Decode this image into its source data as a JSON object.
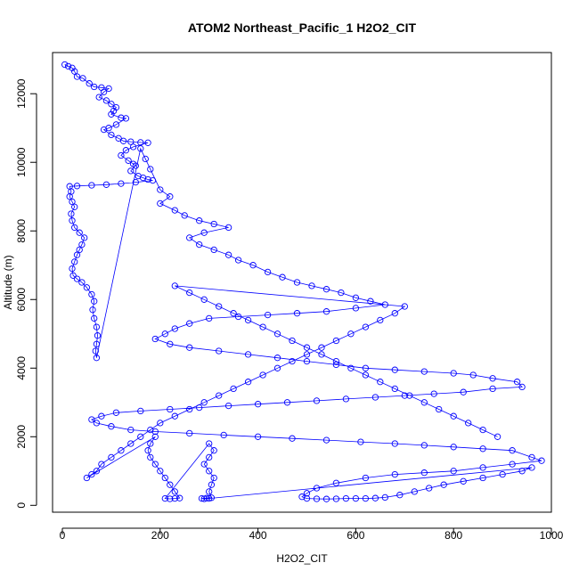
{
  "chart_data": {
    "type": "scatter",
    "title": "ATOM2 Northeast_Pacific_1 H2O2_CIT",
    "xlabel": "H2O2_CIT",
    "ylabel": "Altitude (m)",
    "xlim": [
      -20,
      1000
    ],
    "ylim": [
      -200,
      13200
    ],
    "x_ticks": [
      0,
      200,
      400,
      600,
      800,
      1000
    ],
    "y_ticks": [
      0,
      2000,
      4000,
      6000,
      8000,
      10000,
      12000
    ],
    "grid": false,
    "legend": "none",
    "marker": "open-circle",
    "connected": true,
    "colors": {
      "series": "#0000ff"
    },
    "series": [
      {
        "name": "",
        "points": [
          [
            5,
            12850
          ],
          [
            12,
            12800
          ],
          [
            20,
            12750
          ],
          [
            25,
            12650
          ],
          [
            30,
            12500
          ],
          [
            42,
            12450
          ],
          [
            55,
            12300
          ],
          [
            65,
            12200
          ],
          [
            80,
            12180
          ],
          [
            95,
            12150
          ],
          [
            85,
            12050
          ],
          [
            75,
            11900
          ],
          [
            90,
            11800
          ],
          [
            100,
            11700
          ],
          [
            110,
            11600
          ],
          [
            105,
            11500
          ],
          [
            100,
            11400
          ],
          [
            120,
            11300
          ],
          [
            130,
            11280
          ],
          [
            110,
            11100
          ],
          [
            95,
            11000
          ],
          [
            85,
            10950
          ],
          [
            100,
            10800
          ],
          [
            115,
            10700
          ],
          [
            125,
            10620
          ],
          [
            140,
            10600
          ],
          [
            160,
            10580
          ],
          [
            175,
            10570
          ],
          [
            145,
            10450
          ],
          [
            130,
            10350
          ],
          [
            120,
            10200
          ],
          [
            135,
            10050
          ],
          [
            145,
            9950
          ],
          [
            150,
            9900
          ],
          [
            140,
            9750
          ],
          [
            155,
            9600
          ],
          [
            165,
            9550
          ],
          [
            175,
            9500
          ],
          [
            185,
            9470
          ],
          [
            150,
            9420
          ],
          [
            120,
            9380
          ],
          [
            90,
            9350
          ],
          [
            60,
            9330
          ],
          [
            30,
            9310
          ],
          [
            15,
            9300
          ],
          [
            18,
            9150
          ],
          [
            15,
            9000
          ],
          [
            20,
            8850
          ],
          [
            25,
            8700
          ],
          [
            18,
            8500
          ],
          [
            20,
            8300
          ],
          [
            25,
            8100
          ],
          [
            35,
            7950
          ],
          [
            45,
            7800
          ],
          [
            40,
            7600
          ],
          [
            35,
            7450
          ],
          [
            30,
            7300
          ],
          [
            25,
            7100
          ],
          [
            20,
            6900
          ],
          [
            22,
            6700
          ],
          [
            30,
            6600
          ],
          [
            40,
            6500
          ],
          [
            50,
            6350
          ],
          [
            60,
            6150
          ],
          [
            65,
            5950
          ],
          [
            62,
            5700
          ],
          [
            65,
            5450
          ],
          [
            70,
            5200
          ],
          [
            72,
            4950
          ],
          [
            70,
            4700
          ],
          [
            68,
            4500
          ],
          [
            70,
            4300
          ],
          [
            160,
            10400
          ],
          [
            170,
            10100
          ],
          [
            180,
            9800
          ],
          [
            200,
            9200
          ],
          [
            220,
            9000
          ],
          [
            200,
            8800
          ],
          [
            230,
            8600
          ],
          [
            250,
            8450
          ],
          [
            280,
            8300
          ],
          [
            310,
            8200
          ],
          [
            340,
            8100
          ],
          [
            290,
            7950
          ],
          [
            260,
            7800
          ],
          [
            280,
            7600
          ],
          [
            310,
            7450
          ],
          [
            340,
            7300
          ],
          [
            360,
            7150
          ],
          [
            390,
            7000
          ],
          [
            420,
            6800
          ],
          [
            450,
            6650
          ],
          [
            480,
            6500
          ],
          [
            510,
            6400
          ],
          [
            540,
            6300
          ],
          [
            570,
            6200
          ],
          [
            600,
            6050
          ],
          [
            630,
            5950
          ],
          [
            660,
            5850
          ],
          [
            600,
            5750
          ],
          [
            540,
            5650
          ],
          [
            480,
            5600
          ],
          [
            420,
            5550
          ],
          [
            360,
            5500
          ],
          [
            300,
            5450
          ],
          [
            260,
            5300
          ],
          [
            230,
            5150
          ],
          [
            210,
            5000
          ],
          [
            190,
            4850
          ],
          [
            220,
            4700
          ],
          [
            260,
            4600
          ],
          [
            320,
            4500
          ],
          [
            380,
            4400
          ],
          [
            440,
            4300
          ],
          [
            500,
            4200
          ],
          [
            560,
            4100
          ],
          [
            620,
            4000
          ],
          [
            680,
            3950
          ],
          [
            740,
            3900
          ],
          [
            800,
            3850
          ],
          [
            840,
            3800
          ],
          [
            880,
            3700
          ],
          [
            930,
            3600
          ],
          [
            940,
            3450
          ],
          [
            880,
            3400
          ],
          [
            820,
            3300
          ],
          [
            760,
            3250
          ],
          [
            700,
            3200
          ],
          [
            640,
            3150
          ],
          [
            580,
            3100
          ],
          [
            520,
            3050
          ],
          [
            460,
            3000
          ],
          [
            400,
            2950
          ],
          [
            340,
            2900
          ],
          [
            280,
            2850
          ],
          [
            220,
            2800
          ],
          [
            160,
            2750
          ],
          [
            110,
            2700
          ],
          [
            80,
            2600
          ],
          [
            60,
            2500
          ],
          [
            70,
            2400
          ],
          [
            100,
            2300
          ],
          [
            140,
            2200
          ],
          [
            190,
            2150
          ],
          [
            260,
            2100
          ],
          [
            330,
            2050
          ],
          [
            400,
            2000
          ],
          [
            470,
            1950
          ],
          [
            540,
            1900
          ],
          [
            610,
            1850
          ],
          [
            680,
            1800
          ],
          [
            740,
            1750
          ],
          [
            800,
            1700
          ],
          [
            860,
            1650
          ],
          [
            920,
            1600
          ],
          [
            960,
            1400
          ],
          [
            980,
            1300
          ],
          [
            920,
            1200
          ],
          [
            860,
            1100
          ],
          [
            800,
            1000
          ],
          [
            740,
            950
          ],
          [
            680,
            900
          ],
          [
            620,
            800
          ],
          [
            560,
            650
          ],
          [
            520,
            500
          ],
          [
            500,
            350
          ],
          [
            490,
            250
          ],
          [
            500,
            200
          ],
          [
            520,
            190
          ],
          [
            540,
            185
          ],
          [
            560,
            190
          ],
          [
            580,
            200
          ],
          [
            600,
            200
          ],
          [
            620,
            200
          ],
          [
            640,
            210
          ],
          [
            660,
            230
          ],
          [
            690,
            300
          ],
          [
            720,
            400
          ],
          [
            750,
            500
          ],
          [
            780,
            600
          ],
          [
            820,
            700
          ],
          [
            860,
            800
          ],
          [
            900,
            900
          ],
          [
            940,
            1000
          ],
          [
            960,
            1100
          ],
          [
            300,
            200
          ],
          [
            290,
            190
          ],
          [
            285,
            200
          ],
          [
            295,
            210
          ],
          [
            305,
            220
          ],
          [
            300,
            400
          ],
          [
            305,
            600
          ],
          [
            310,
            800
          ],
          [
            300,
            1000
          ],
          [
            290,
            1200
          ],
          [
            300,
            1400
          ],
          [
            310,
            1600
          ],
          [
            300,
            1800
          ],
          [
            210,
            200
          ],
          [
            220,
            190
          ],
          [
            230,
            200
          ],
          [
            240,
            210
          ],
          [
            230,
            400
          ],
          [
            220,
            600
          ],
          [
            210,
            800
          ],
          [
            200,
            1000
          ],
          [
            190,
            1200
          ],
          [
            180,
            1400
          ],
          [
            175,
            1600
          ],
          [
            180,
            1800
          ],
          [
            190,
            2000
          ],
          [
            50,
            800
          ],
          [
            60,
            900
          ],
          [
            70,
            1000
          ],
          [
            80,
            1200
          ],
          [
            100,
            1400
          ],
          [
            120,
            1600
          ],
          [
            140,
            1800
          ],
          [
            160,
            2000
          ],
          [
            180,
            2200
          ],
          [
            200,
            2400
          ],
          [
            230,
            2600
          ],
          [
            260,
            2800
          ],
          [
            290,
            3000
          ],
          [
            320,
            3200
          ],
          [
            350,
            3400
          ],
          [
            380,
            3600
          ],
          [
            410,
            3800
          ],
          [
            440,
            4000
          ],
          [
            470,
            4200
          ],
          [
            500,
            4400
          ],
          [
            530,
            4600
          ],
          [
            560,
            4800
          ],
          [
            590,
            5000
          ],
          [
            620,
            5200
          ],
          [
            650,
            5400
          ],
          [
            680,
            5600
          ],
          [
            700,
            5800
          ],
          [
            230,
            6400
          ],
          [
            260,
            6200
          ],
          [
            290,
            6000
          ],
          [
            320,
            5800
          ],
          [
            350,
            5600
          ],
          [
            380,
            5400
          ],
          [
            410,
            5200
          ],
          [
            440,
            5000
          ],
          [
            470,
            4800
          ],
          [
            500,
            4600
          ],
          [
            530,
            4400
          ],
          [
            560,
            4200
          ],
          [
            590,
            4000
          ],
          [
            620,
            3800
          ],
          [
            650,
            3600
          ],
          [
            680,
            3400
          ],
          [
            710,
            3200
          ],
          [
            740,
            3000
          ],
          [
            770,
            2800
          ],
          [
            800,
            2600
          ],
          [
            830,
            2400
          ],
          [
            860,
            2200
          ],
          [
            890,
            2000
          ]
        ]
      }
    ]
  }
}
